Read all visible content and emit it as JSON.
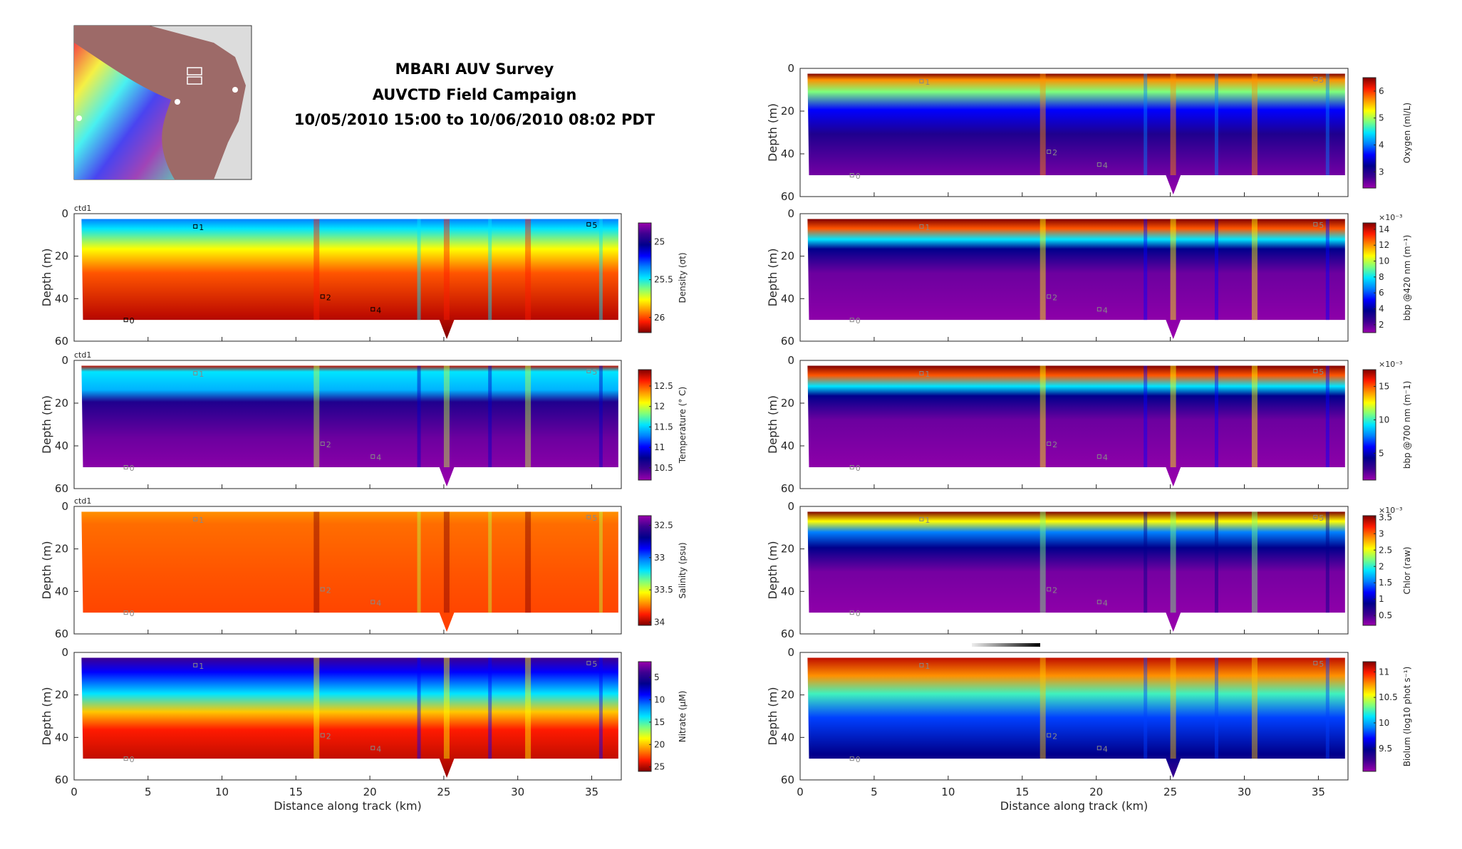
{
  "header": {
    "title_lines": [
      "MBARI AUV Survey",
      "AUVCTD Field Campaign",
      "10/05/2010 15:00 to 10/06/2010 08:02 PDT"
    ]
  },
  "map": {
    "name": "survey-location-map"
  },
  "axes": {
    "xlabel": "Distance along track (km)",
    "ylabel": "Depth (m)",
    "x_ticks": [
      "0",
      "5",
      "10",
      "15",
      "20",
      "25",
      "30",
      "35"
    ],
    "y_ticks": [
      "0",
      "20",
      "40",
      "60"
    ],
    "xlim": [
      0,
      37
    ],
    "ylim": [
      60,
      0
    ]
  },
  "chart_data": [
    {
      "type": "heatmap",
      "id": "density",
      "side": "left",
      "tag": "ctd1",
      "colorbar_label": "Density (σt)",
      "colorbar_range": [
        24.75,
        26.2
      ],
      "colorbar_reversed": true,
      "colorbar_ticks": [
        "25",
        "25.5",
        "26"
      ],
      "exponent": ""
    },
    {
      "type": "heatmap",
      "id": "temperature",
      "side": "left",
      "tag": "ctd1",
      "colorbar_label": "Temperature (° C)",
      "colorbar_range": [
        10.2,
        12.9
      ],
      "colorbar_reversed": false,
      "colorbar_ticks": [
        "10.5",
        "11",
        "11.5",
        "12",
        "12.5"
      ],
      "exponent": ""
    },
    {
      "type": "heatmap",
      "id": "salinity",
      "side": "left",
      "tag": "ctd1",
      "colorbar_label": "Salinity (psu)",
      "colorbar_range": [
        32.35,
        34.05
      ],
      "colorbar_reversed": true,
      "colorbar_ticks": [
        "32.5",
        "33",
        "33.5",
        "34"
      ],
      "exponent": ""
    },
    {
      "type": "heatmap",
      "id": "nitrate",
      "side": "left",
      "tag": "",
      "colorbar_label": "Nitrate (μM)",
      "colorbar_range": [
        1.5,
        26
      ],
      "colorbar_reversed": true,
      "colorbar_ticks": [
        "5",
        "10",
        "15",
        "20",
        "25"
      ],
      "exponent": ""
    },
    {
      "type": "heatmap",
      "id": "oxygen",
      "side": "right",
      "tag": "",
      "colorbar_label": "Oxygen (ml/L)",
      "colorbar_range": [
        2.4,
        6.5
      ],
      "colorbar_reversed": false,
      "colorbar_ticks": [
        "3",
        "4",
        "5",
        "6"
      ],
      "exponent": ""
    },
    {
      "type": "heatmap",
      "id": "bbp420",
      "side": "right",
      "tag": "",
      "colorbar_label": "bbp @420 nm (m⁻¹)",
      "colorbar_range": [
        1,
        14.8
      ],
      "colorbar_reversed": false,
      "colorbar_ticks": [
        "2",
        "4",
        "6",
        "8",
        "10",
        "12",
        "14"
      ],
      "exponent": "×10⁻³"
    },
    {
      "type": "heatmap",
      "id": "bbp700",
      "side": "right",
      "tag": "",
      "colorbar_label": "bbp @700 nm (m⁻1)",
      "colorbar_range": [
        1,
        17.5
      ],
      "colorbar_reversed": false,
      "colorbar_ticks": [
        "5",
        "10",
        "15"
      ],
      "exponent": "×10⁻³"
    },
    {
      "type": "heatmap",
      "id": "chlor",
      "side": "right",
      "tag": "",
      "colorbar_label": "Chlor (raw)",
      "colorbar_range": [
        0.2,
        3.55
      ],
      "colorbar_reversed": false,
      "colorbar_ticks": [
        "0.5",
        "1",
        "1.5",
        "2",
        "2.5",
        "3",
        "3.5"
      ],
      "exponent": "×10⁻³"
    },
    {
      "type": "heatmap",
      "id": "biolum",
      "side": "right",
      "tag": "",
      "colorbar_label": "Biolum (log10 phot s⁻¹)",
      "colorbar_range": [
        9.05,
        11.2
      ],
      "colorbar_reversed": false,
      "colorbar_ticks": [
        "9.5",
        "10",
        "10.5",
        "11"
      ],
      "exponent": ""
    }
  ],
  "markers": [
    {
      "label": "0",
      "km": 3.5,
      "depth": 50
    },
    {
      "label": "1",
      "km": 8.2,
      "depth": 6
    },
    {
      "label": "2",
      "km": 16.8,
      "depth": 39
    },
    {
      "label": "4",
      "km": 20.2,
      "depth": 45
    },
    {
      "label": "5",
      "km": 34.8,
      "depth": 5
    }
  ],
  "colors": {
    "jet": [
      "#9a00ad",
      "#3d0090",
      "#00008c",
      "#0000ff",
      "#0080ff",
      "#00e5ff",
      "#7dff7d",
      "#ffff00",
      "#ff9000",
      "#ff1a00",
      "#7f0000"
    ]
  }
}
